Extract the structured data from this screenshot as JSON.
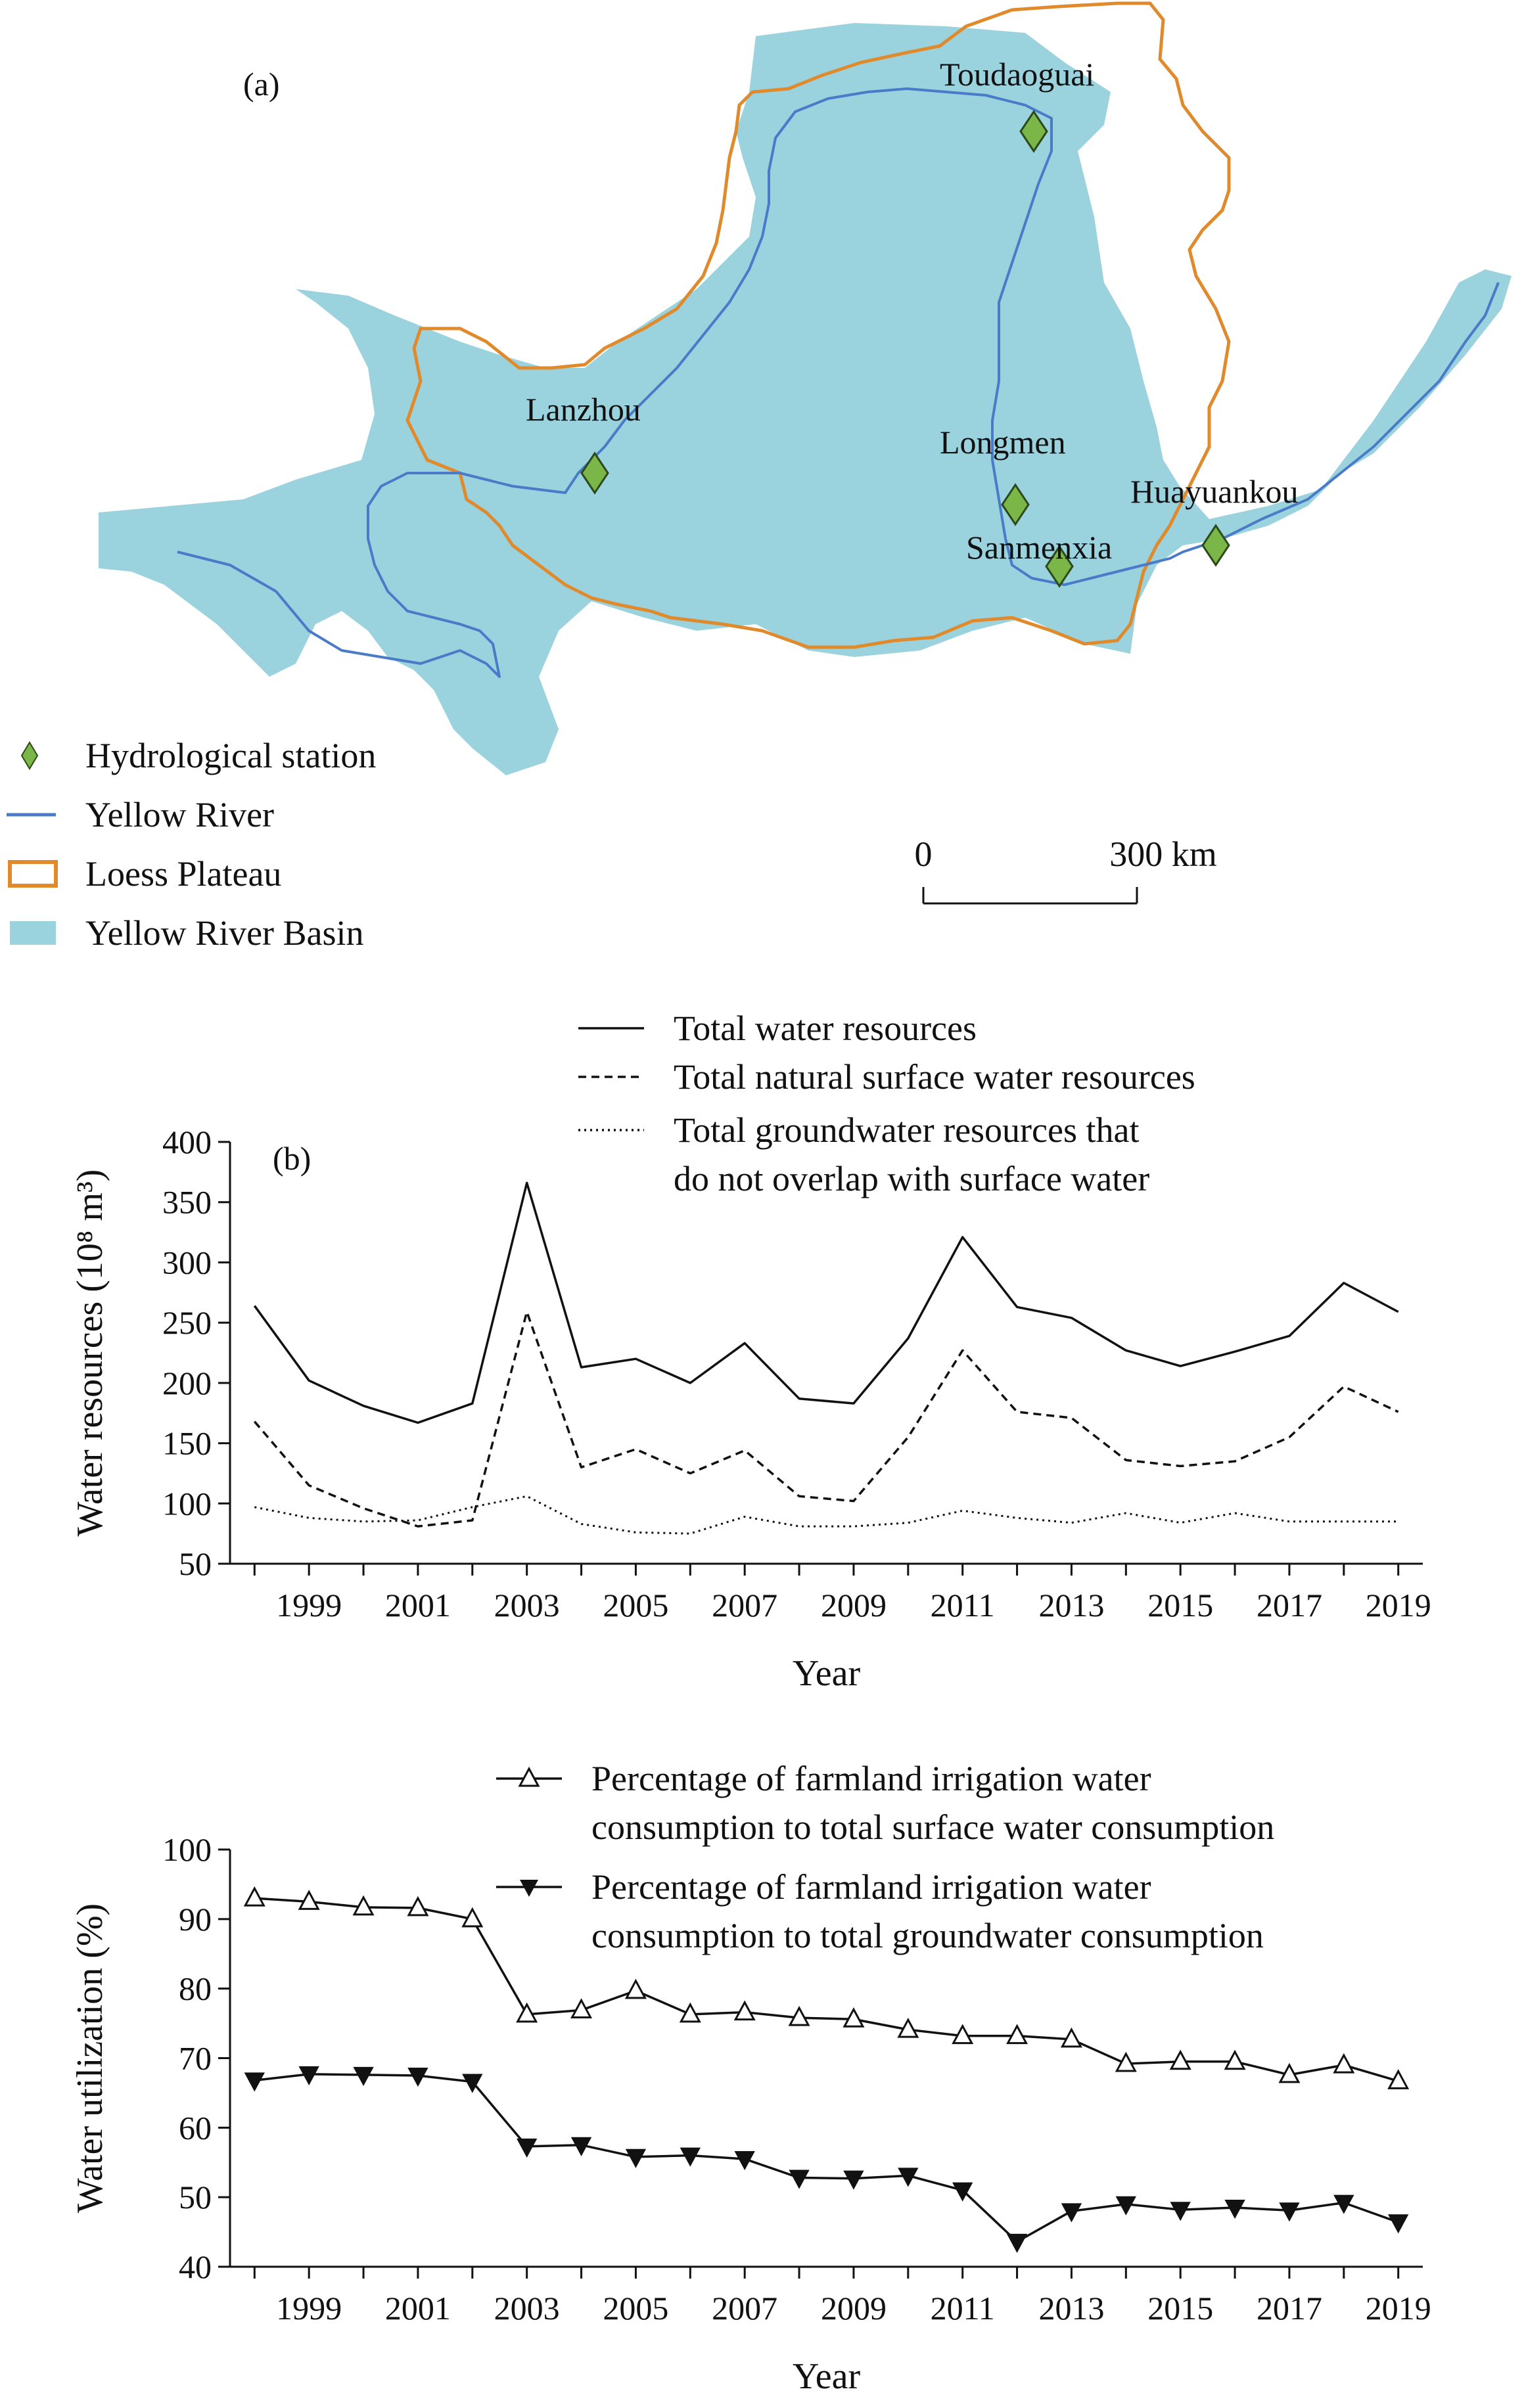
{
  "map": {
    "panel_label": "(a)",
    "stations": [
      {
        "name": "Toudaoguai"
      },
      {
        "name": "Lanzhou"
      },
      {
        "name": "Longmen"
      },
      {
        "name": "Huayuankou"
      },
      {
        "name": "Sanmenxia"
      }
    ],
    "legend": [
      {
        "label": "Hydrological station",
        "icon": "diamond-icon",
        "color": "#7ab648"
      },
      {
        "label": "Yellow River",
        "icon": "line-icon",
        "color": "#4a7bc8"
      },
      {
        "label": "Loess Plateau",
        "icon": "outline-box-icon",
        "color": "#e08a2c"
      },
      {
        "label": "Yellow River Basin",
        "icon": "filled-box-icon",
        "color": "#9ad3de"
      }
    ],
    "scale_bar": {
      "start": "0",
      "end": "300 km"
    }
  },
  "chart_data": [
    {
      "type": "line",
      "panel_label": "(b)",
      "x": [
        1998,
        1999,
        2000,
        2001,
        2002,
        2003,
        2004,
        2005,
        2006,
        2007,
        2008,
        2009,
        2010,
        2011,
        2012,
        2013,
        2014,
        2015,
        2016,
        2017,
        2018,
        2019
      ],
      "xticks": [
        "1999",
        "2001",
        "2003",
        "2005",
        "2007",
        "2009",
        "2011",
        "2013",
        "2015",
        "2017",
        "2019"
      ],
      "xlabel": "Year",
      "ylabel": "Water resources (10⁸ m³)",
      "ylim": [
        50,
        400
      ],
      "yticks": [
        "50",
        "100",
        "150",
        "200",
        "250",
        "300",
        "350",
        "400"
      ],
      "series": [
        {
          "name": "Total water resources",
          "style": "solid",
          "values": [
            264,
            202,
            181,
            167,
            183,
            366,
            213,
            220,
            200,
            233,
            187,
            183,
            237,
            321,
            263,
            254,
            227,
            214,
            226,
            239,
            283,
            259
          ]
        },
        {
          "name": "Total natural surface water resources",
          "style": "dashed",
          "values": [
            168,
            115,
            96,
            81,
            86,
            259,
            130,
            145,
            125,
            144,
            106,
            102,
            155,
            227,
            176,
            171,
            136,
            131,
            135,
            155,
            197,
            176
          ]
        },
        {
          "name": "Total groundwater resources that do not overlap with surface water",
          "name_lines": [
            "Total groundwater resources that",
            "do not overlap with surface water"
          ],
          "style": "dotted",
          "values": [
            97,
            88,
            85,
            86,
            97,
            106,
            83,
            76,
            75,
            89,
            81,
            81,
            84,
            94,
            88,
            84,
            92,
            84,
            92,
            85,
            85,
            85
          ]
        }
      ]
    },
    {
      "type": "line",
      "x": [
        1998,
        1999,
        2000,
        2001,
        2002,
        2003,
        2004,
        2005,
        2006,
        2007,
        2008,
        2009,
        2010,
        2011,
        2012,
        2013,
        2014,
        2015,
        2016,
        2017,
        2018,
        2019
      ],
      "xticks": [
        "1999",
        "2001",
        "2003",
        "2005",
        "2007",
        "2009",
        "2011",
        "2013",
        "2015",
        "2017",
        "2019"
      ],
      "xlabel": "Year",
      "ylabel": "Water utilization (%)",
      "ylim": [
        40,
        100
      ],
      "yticks": [
        "40",
        "50",
        "60",
        "70",
        "80",
        "90",
        "100"
      ],
      "series": [
        {
          "name": "Percentage of farmland irrigation water consumption to total surface water consumption",
          "name_lines": [
            "Percentage of farmland irrigation water",
            "consumption to total surface water consumption"
          ],
          "marker": "open-triangle-up",
          "values": [
            93.0,
            92.5,
            91.7,
            91.6,
            90.0,
            76.3,
            76.9,
            79.7,
            76.3,
            76.6,
            75.8,
            75.6,
            74.1,
            73.2,
            73.2,
            72.7,
            69.2,
            69.5,
            69.5,
            67.6,
            69.0,
            66.7
          ]
        },
        {
          "name": "Percentage of farmland irrigation water consumption to total groundwater consumption",
          "name_lines": [
            "Percentage of farmland irrigation water",
            "consumption to total groundwater consumption"
          ],
          "marker": "filled-triangle-down",
          "values": [
            66.8,
            67.7,
            67.6,
            67.5,
            66.6,
            57.3,
            57.5,
            55.8,
            56.0,
            55.5,
            52.8,
            52.7,
            53.1,
            51.0,
            43.6,
            48.0,
            49.0,
            48.2,
            48.5,
            48.1,
            49.2,
            46.4
          ]
        }
      ]
    }
  ]
}
